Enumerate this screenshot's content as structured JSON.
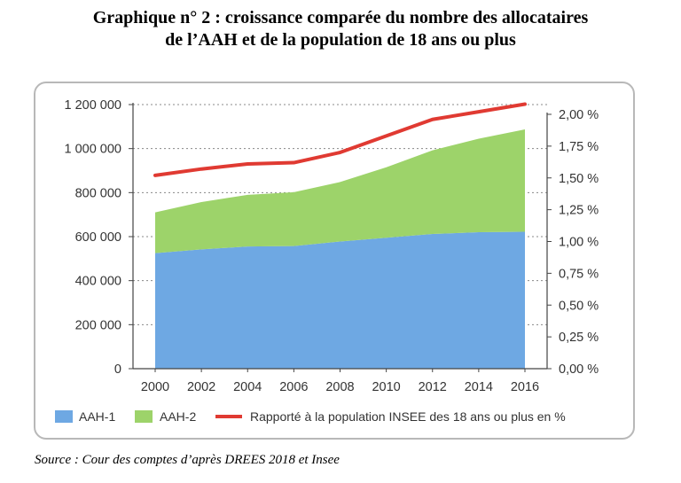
{
  "header": {
    "title_line1": "Graphique n° 2 : croissance comparée du nombre des allocataires",
    "title_line2": "de l’AAH et de la population de 18 ans ou plus"
  },
  "footer": {
    "source": "Source : Cour des comptes d’après DREES 2018 et Insee"
  },
  "colors": {
    "aah1": "#6ea8e3",
    "aah2": "#9dd36a",
    "ratio": "#e03a32",
    "grid": "#888888",
    "axis": "#444444"
  },
  "chart_data": {
    "type": "area",
    "x": [
      2000,
      2002,
      2004,
      2006,
      2008,
      2010,
      2012,
      2014,
      2016
    ],
    "x_tick_labels": [
      "2000",
      "2002",
      "2004",
      "2006",
      "2008",
      "2010",
      "2012",
      "2014",
      "2016"
    ],
    "left_ylim": [
      0,
      1200000
    ],
    "left_ticks": [
      0,
      200000,
      400000,
      600000,
      800000,
      1000000,
      1200000
    ],
    "left_tick_labels": [
      "0",
      "200 000",
      "400 000",
      "600 000",
      "800 000",
      "1 000 000",
      "1 200 000"
    ],
    "right_ylim": [
      0,
      2.0
    ],
    "right_ticks": [
      0,
      0.25,
      0.5,
      0.75,
      1.0,
      1.25,
      1.5,
      1.75,
      2.0
    ],
    "right_tick_labels": [
      "0,00 %",
      "0,25 %",
      "0,50 %",
      "0,75 %",
      "1,00 %",
      "1,25 %",
      "1,50 %",
      "1,75 %",
      "2,00 %"
    ],
    "series": [
      {
        "name": "AAH-1",
        "kind": "stacked-area",
        "axis": "left",
        "values": [
          525000,
          542000,
          555000,
          557000,
          578000,
          595000,
          612000,
          620000,
          622000
        ]
      },
      {
        "name": "AAH-2",
        "kind": "stacked-area",
        "axis": "left",
        "values": [
          185000,
          215000,
          235000,
          245000,
          270000,
          320000,
          380000,
          425000,
          465000
        ]
      },
      {
        "name": "Rapporté à la population INSEE des 18 ans ou plus en %",
        "kind": "line",
        "axis": "right",
        "values": [
          1.52,
          1.57,
          1.61,
          1.62,
          1.7,
          1.83,
          1.96,
          2.02,
          2.08
        ]
      }
    ],
    "legend": [
      "AAH-1",
      "AAH-2",
      "Rapporté à la population INSEE des 18 ans ou plus en %"
    ],
    "legend_position": "bottom",
    "grid": "dotted horizontal"
  }
}
